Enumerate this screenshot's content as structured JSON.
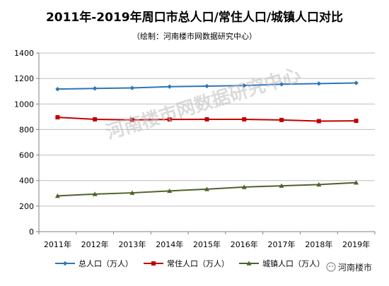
{
  "chart_data": {
    "type": "line",
    "title": "2011年-2019年周口市总人口/常住人口/城镇人口对比",
    "subtitle": "（绘制：河南楼市网数据研究中心）",
    "categories": [
      "2011年",
      "2012年",
      "2013年",
      "2014年",
      "2015年",
      "2016年",
      "2017年",
      "2018年",
      "2019年"
    ],
    "ylim": [
      0,
      1400
    ],
    "yticks": [
      0,
      200,
      400,
      600,
      800,
      1000,
      1200,
      1400
    ],
    "grid": true,
    "legend_position": "bottom",
    "series": [
      {
        "name": "总人口（万人）",
        "color": "#2e75b6",
        "marker": "diamond",
        "values": [
          1117,
          1122,
          1126,
          1136,
          1140,
          1145,
          1155,
          1160,
          1165
        ]
      },
      {
        "name": "常住人口（万人）",
        "color": "#c00000",
        "marker": "square",
        "values": [
          896,
          880,
          876,
          879,
          880,
          880,
          875,
          866,
          868
        ]
      },
      {
        "name": "城镇人口（万人）",
        "color": "#4f6228",
        "marker": "triangle",
        "values": [
          280,
          294,
          304,
          319,
          333,
          349,
          359,
          369,
          384
        ]
      }
    ]
  },
  "watermark": "河南楼市网数据研究中心",
  "brand": "河南楼市"
}
